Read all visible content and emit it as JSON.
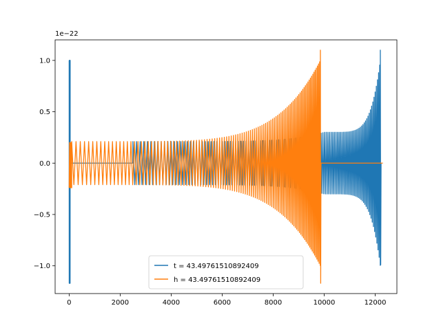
{
  "chart_data": {
    "type": "line",
    "title": "",
    "xlabel": "",
    "ylabel": "",
    "y_offset_label": "1e−22",
    "xlim": [
      -550,
      12850
    ],
    "ylim": [
      -1.27,
      1.2
    ],
    "x_ticks": [
      0,
      2000,
      4000,
      6000,
      8000,
      10000,
      12000
    ],
    "x_tick_labels": [
      "0",
      "2000",
      "4000",
      "6000",
      "8000",
      "10000",
      "12000"
    ],
    "y_ticks": [
      -1.0,
      -0.5,
      0.0,
      0.5,
      1.0
    ],
    "y_tick_labels": [
      "−1.0",
      "−0.5",
      "0.0",
      "0.5",
      "1.0"
    ],
    "grid": false,
    "legend_position": "lower-center",
    "series": [
      {
        "name": "t = 43.49761510892409",
        "color": "#1f77b4",
        "description_points": {
          "initial_burst_x": [
            0,
            40
          ],
          "initial_burst_y": [
            -1.17,
            1.0
          ],
          "flat_zero_x": [
            40,
            2500
          ],
          "oscillation_start_x": 2500,
          "oscillation_amplitude_start": 0.21,
          "amplitude_at_10000": 0.3,
          "peak_x": 12200,
          "peak_y_max": 1.1,
          "peak_y_min": -0.99
        }
      },
      {
        "name": "h = 43.49761510892409",
        "color": "#ff7f0e",
        "description_points": {
          "initial_burst_x": [
            0,
            100
          ],
          "initial_burst_y": [
            -0.24,
            0.2
          ],
          "oscillation_start_x": 0,
          "oscillation_amplitude_start": 0.21,
          "peak_x": 9850,
          "peak_y_max": 1.1,
          "peak_y_min": -1.17,
          "flat_zero_x": [
            9850,
            12300
          ]
        }
      }
    ]
  }
}
